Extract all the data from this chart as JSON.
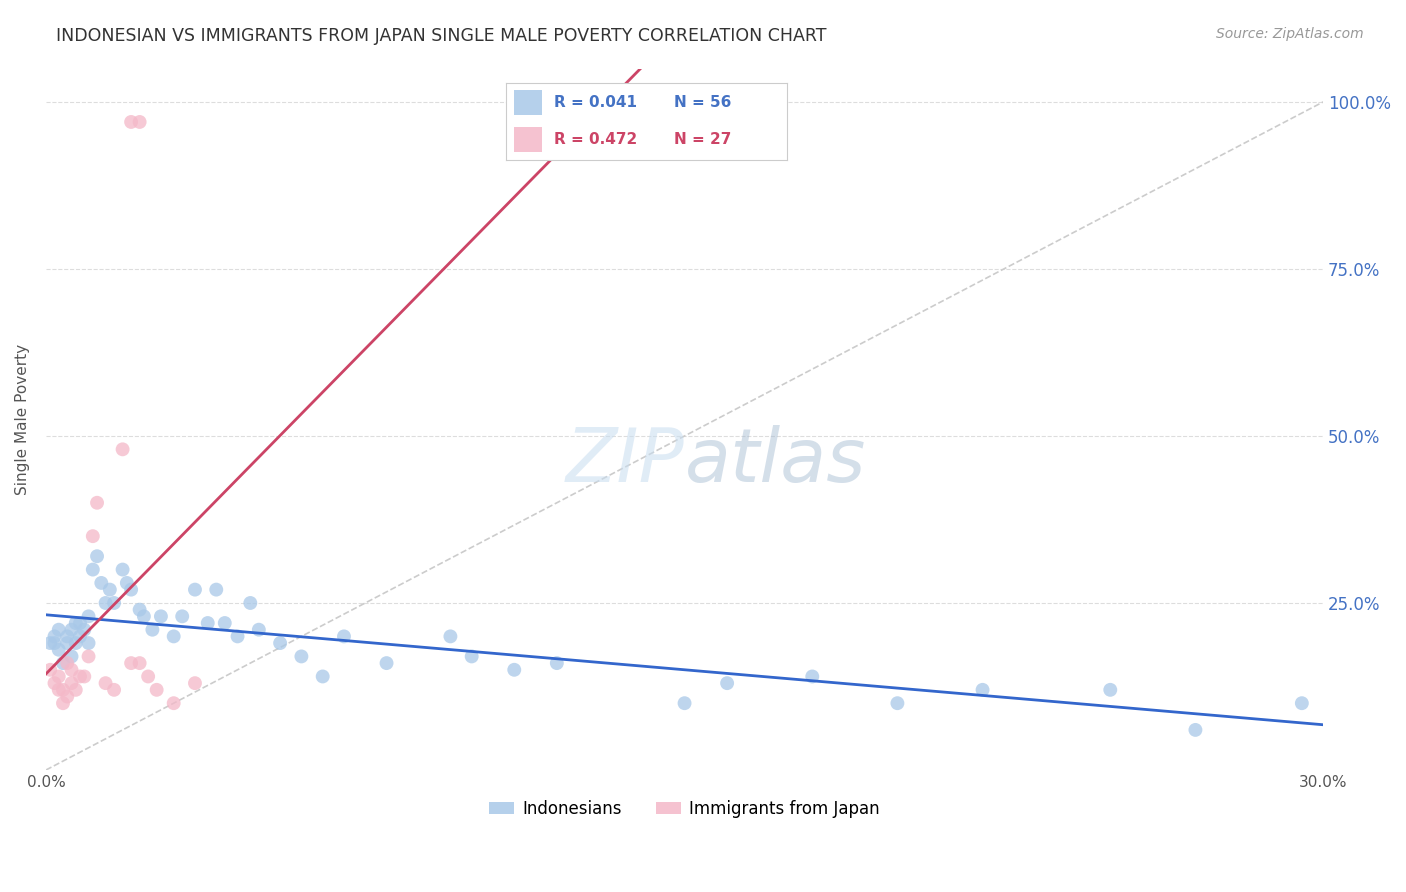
{
  "title": "INDONESIAN VS IMMIGRANTS FROM JAPAN SINGLE MALE POVERTY CORRELATION CHART",
  "source": "Source: ZipAtlas.com",
  "ylabel": "Single Male Poverty",
  "blue_color": "#a8c8e8",
  "pink_color": "#f4b8c8",
  "blue_line_color": "#3366cc",
  "pink_line_color": "#cc4466",
  "diagonal_color": "#cccccc",
  "background_color": "#ffffff",
  "legend_blue_label": "Indonesians",
  "legend_pink_label": "Immigrants from Japan",
  "legend_r_blue": "R = 0.041",
  "legend_n_blue": "N = 56",
  "legend_r_pink": "R = 0.472",
  "legend_n_pink": "N = 27",
  "blue_text_color": "#4472c4",
  "pink_text_color": "#cc4466",
  "right_axis_color": "#4472c4",
  "xlim": [
    0.0,
    0.3
  ],
  "ylim": [
    0.0,
    1.05
  ],
  "indonesian_x": [
    0.001,
    0.002,
    0.002,
    0.003,
    0.003,
    0.004,
    0.005,
    0.005,
    0.006,
    0.006,
    0.007,
    0.007,
    0.008,
    0.008,
    0.009,
    0.01,
    0.01,
    0.011,
    0.012,
    0.013,
    0.014,
    0.015,
    0.016,
    0.018,
    0.019,
    0.02,
    0.022,
    0.023,
    0.025,
    0.027,
    0.03,
    0.032,
    0.035,
    0.038,
    0.04,
    0.042,
    0.045,
    0.048,
    0.05,
    0.055,
    0.06,
    0.065,
    0.07,
    0.08,
    0.095,
    0.1,
    0.11,
    0.12,
    0.15,
    0.16,
    0.18,
    0.2,
    0.22,
    0.25,
    0.27,
    0.295
  ],
  "indonesian_y": [
    0.19,
    0.19,
    0.2,
    0.18,
    0.21,
    0.16,
    0.19,
    0.2,
    0.17,
    0.21,
    0.19,
    0.22,
    0.2,
    0.22,
    0.21,
    0.19,
    0.23,
    0.3,
    0.32,
    0.28,
    0.25,
    0.27,
    0.25,
    0.3,
    0.28,
    0.27,
    0.24,
    0.23,
    0.21,
    0.23,
    0.2,
    0.23,
    0.27,
    0.22,
    0.27,
    0.22,
    0.2,
    0.25,
    0.21,
    0.19,
    0.17,
    0.14,
    0.2,
    0.16,
    0.2,
    0.17,
    0.15,
    0.16,
    0.1,
    0.13,
    0.14,
    0.1,
    0.12,
    0.12,
    0.06,
    0.1
  ],
  "japan_x": [
    0.001,
    0.002,
    0.003,
    0.003,
    0.004,
    0.004,
    0.005,
    0.005,
    0.006,
    0.006,
    0.007,
    0.008,
    0.009,
    0.01,
    0.011,
    0.012,
    0.014,
    0.016,
    0.018,
    0.02,
    0.022,
    0.024,
    0.026,
    0.03,
    0.035,
    0.02,
    0.022
  ],
  "japan_y": [
    0.15,
    0.13,
    0.12,
    0.14,
    0.1,
    0.12,
    0.11,
    0.16,
    0.13,
    0.15,
    0.12,
    0.14,
    0.14,
    0.17,
    0.35,
    0.4,
    0.13,
    0.12,
    0.48,
    0.16,
    0.16,
    0.14,
    0.12,
    0.1,
    0.13,
    0.97,
    0.97
  ]
}
